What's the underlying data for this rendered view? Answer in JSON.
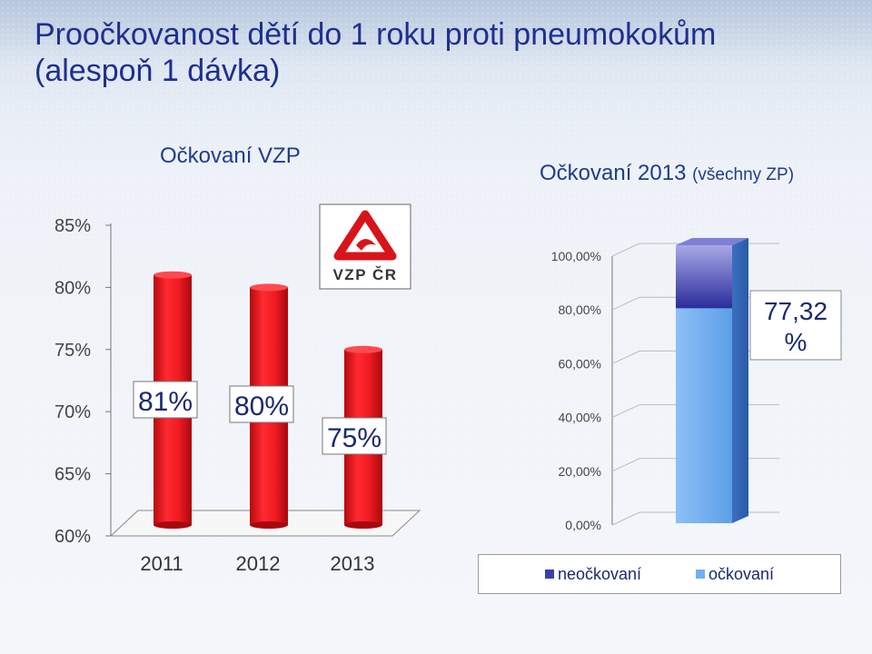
{
  "title": "Proočkovanost dětí do 1 roku proti pneumokokům (alespoň 1 dávka)",
  "logo_text": "VZP ČR",
  "colors": {
    "bar_red": "#e8141b",
    "neockovani": "#3a3fb0",
    "ockovani": "#6fb0f2",
    "title_blue": "#1f2f8f"
  },
  "chart_data": [
    {
      "type": "bar",
      "title": "Očkovaní VZP",
      "categories": [
        "2011",
        "2012",
        "2013"
      ],
      "values": [
        81,
        80,
        75
      ],
      "data_labels": [
        "81%",
        "80%",
        "75%"
      ],
      "yticks": [
        "60%",
        "65%",
        "70%",
        "75%",
        "80%",
        "85%"
      ],
      "ylim": [
        60,
        85
      ],
      "grid": false
    },
    {
      "type": "bar",
      "stacked": true,
      "title": "Očkovaní 2013",
      "subtitle": "(všechny ZP)",
      "categories": [
        ""
      ],
      "series": [
        {
          "name": "očkovaní",
          "values": [
            77.32
          ]
        },
        {
          "name": "neočkovaní",
          "values": [
            22.68
          ]
        }
      ],
      "data_label": "77,32 %",
      "yticks": [
        "0,00%",
        "20,00%",
        "40,00%",
        "60,00%",
        "80,00%",
        "100,00%"
      ],
      "ylim": [
        0,
        100
      ],
      "grid": true,
      "legend": "bottom"
    }
  ]
}
